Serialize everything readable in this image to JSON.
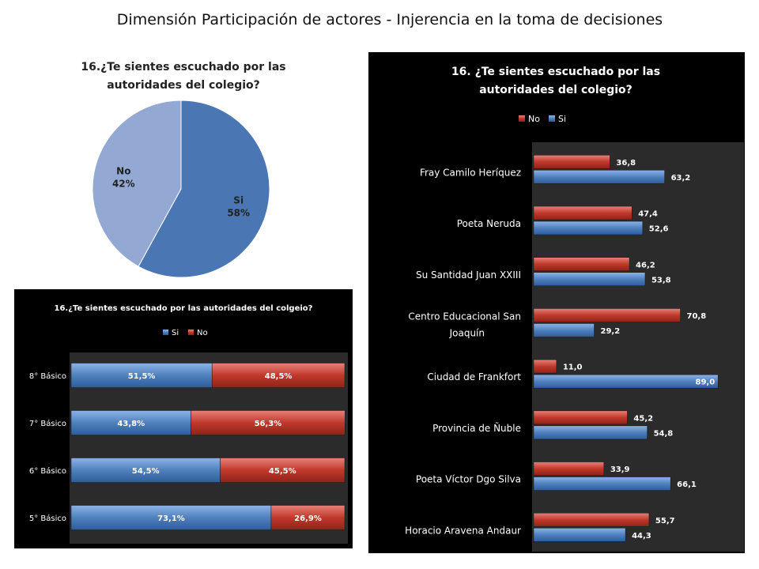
{
  "slide": {
    "title": "Dimensión Participación de actores - Injerencia en la toma de decisiones"
  },
  "colors": {
    "si": "#4f81bd",
    "no": "#c0392b",
    "pie_si": "#4a77b4",
    "pie_no": "#93a9d3",
    "dark_bg": "#000000",
    "plot_bg": "#2b2b2b"
  },
  "chart_data": [
    {
      "id": "pie",
      "type": "pie",
      "title": "16.¿Te sientes escuchado por las autoridades del colegio?",
      "slices": [
        {
          "name": "Si",
          "value": 58,
          "label": "58%"
        },
        {
          "name": "No",
          "value": 42,
          "label": "42%"
        }
      ]
    },
    {
      "id": "stacked",
      "type": "bar",
      "orientation": "horizontal",
      "stacked": true,
      "title": "16.¿Te sientes escuchado por las autoridades del colgeio?",
      "legend": [
        "Si",
        "No"
      ],
      "legend_position": "top",
      "categories": [
        "8° Básico",
        "7° Básico",
        "6° Básico",
        "5° Básico"
      ],
      "series": [
        {
          "name": "Si",
          "values": [
            51.5,
            43.8,
            54.5,
            73.1
          ],
          "labels": [
            "51,5%",
            "43,8%",
            "54,5%",
            "73,1%"
          ]
        },
        {
          "name": "No",
          "values": [
            48.5,
            56.3,
            45.5,
            26.9
          ],
          "labels": [
            "48,5%",
            "56,3%",
            "45,5%",
            "26,9%"
          ]
        }
      ],
      "xlim": [
        0,
        100
      ]
    },
    {
      "id": "schools",
      "type": "bar",
      "orientation": "horizontal",
      "title": "16. ¿Te sientes escuchado por las autoridades del colegio?",
      "legend": [
        "No",
        "Si"
      ],
      "legend_position": "top",
      "categories": [
        "Fray Camilo Heríquez",
        "Poeta Neruda",
        "Su Santidad Juan XXIII",
        "Centro Educacional San Joaquín",
        "Ciudad de Frankfort",
        "Provincia de Ñuble",
        "Poeta Víctor Dgo Silva",
        "Horacio Aravena Andaur"
      ],
      "series": [
        {
          "name": "No",
          "values": [
            36.8,
            47.4,
            46.2,
            70.8,
            11.0,
            45.2,
            33.9,
            55.7
          ],
          "labels": [
            "36,8",
            "47,4",
            "46,2",
            "70,8",
            "11,0",
            "45,2",
            "33,9",
            "55,7"
          ]
        },
        {
          "name": "Si",
          "values": [
            63.2,
            52.6,
            53.8,
            29.2,
            89.0,
            54.8,
            66.1,
            44.3
          ],
          "labels": [
            "63,2",
            "52,6",
            "53,8",
            "29,2",
            "89,0",
            "54,8",
            "66,1",
            "44,3"
          ]
        }
      ],
      "xlim": [
        0,
        100
      ]
    }
  ]
}
